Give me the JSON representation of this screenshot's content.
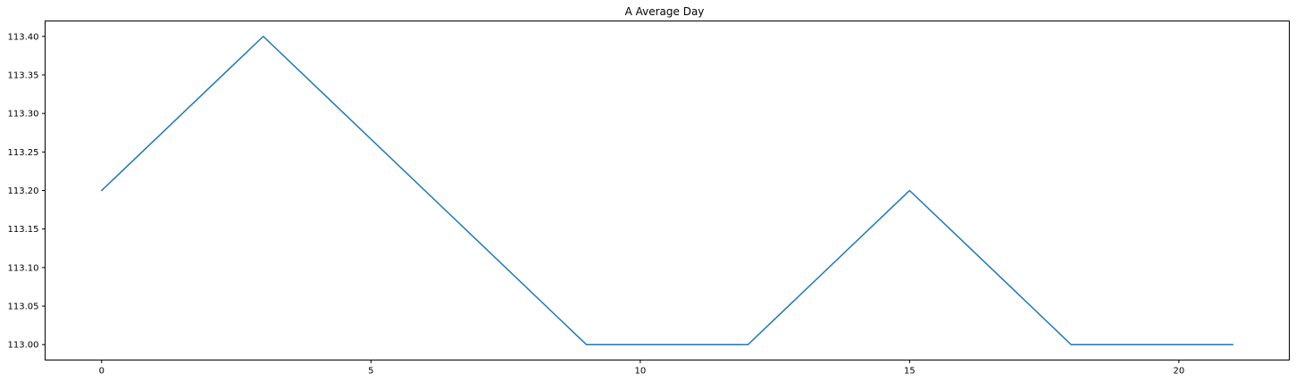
{
  "chart_data": {
    "type": "line",
    "title": "A Average Day",
    "xlabel": "",
    "ylabel": "",
    "xlim": [
      -1.05,
      22.05
    ],
    "ylim": [
      112.98,
      113.42
    ],
    "xticks": [
      0,
      5,
      10,
      15,
      20
    ],
    "xtick_labels": [
      "0",
      "5",
      "10",
      "15",
      "20"
    ],
    "yticks": [
      113.0,
      113.05,
      113.1,
      113.15,
      113.2,
      113.25,
      113.3,
      113.35,
      113.4
    ],
    "ytick_labels": [
      "113.00",
      "113.05",
      "113.10",
      "113.15",
      "113.20",
      "113.25",
      "113.30",
      "113.35",
      "113.40"
    ],
    "grid": false,
    "series": [
      {
        "color": "#1f77b4",
        "x": [
          0,
          3,
          9,
          12,
          15,
          18,
          21
        ],
        "y": [
          113.2,
          113.4,
          113.0,
          113.0,
          113.2,
          113.0,
          113.0
        ]
      }
    ]
  }
}
